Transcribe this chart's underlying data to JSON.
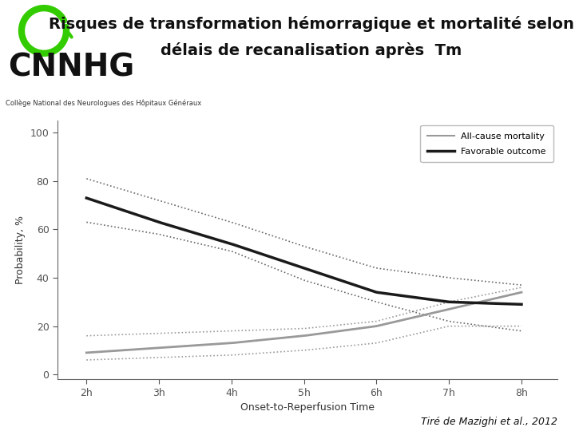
{
  "title_line1": "Risques de transformation hémorragique et mortalité selon",
  "title_line2": "délais de recanalisation après  Tm",
  "footer": "Tiré de Mazighi et al., 2012",
  "cnnhg_text": "CNNHG",
  "subtitle_text": "Collège National des Neurologues des Hôpitaux Généraux",
  "xlabel": "Onset-to-Reperfusion Time",
  "ylabel": "Probability, %",
  "x_ticks": [
    2,
    3,
    4,
    5,
    6,
    7,
    8
  ],
  "x_tick_labels": [
    "2h",
    "3h",
    "4h",
    "5h",
    "6h",
    "7h",
    "8h"
  ],
  "ylim": [
    -2,
    105
  ],
  "xlim": [
    1.6,
    8.5
  ],
  "legend_label_mortality": "All-cause mortality",
  "legend_label_favorable": "Favorable outcome",
  "mortality_x": [
    2,
    3,
    4,
    5,
    6,
    7,
    8
  ],
  "mortality_y": [
    9,
    11,
    13,
    16,
    20,
    27,
    34
  ],
  "mortality_upper": [
    16,
    17,
    18,
    19,
    22,
    30,
    36
  ],
  "mortality_lower": [
    6,
    7,
    8,
    10,
    13,
    20,
    20
  ],
  "favorable_x": [
    2,
    3,
    4,
    5,
    6,
    7,
    8
  ],
  "favorable_y": [
    73,
    63,
    54,
    44,
    34,
    30,
    29
  ],
  "favorable_upper": [
    81,
    72,
    63,
    53,
    44,
    40,
    37
  ],
  "favorable_lower": [
    63,
    58,
    51,
    39,
    30,
    22,
    18
  ],
  "mortality_color": "#999999",
  "favorable_color": "#1a1a1a",
  "ci_mortality_color": "#999999",
  "ci_favorable_color": "#666666",
  "header_bg": "#ffffff",
  "bar_color": "#c8d8a0",
  "background_color": "#ffffff",
  "plot_bg": "#ffffff",
  "green_circle_color": "#33cc00",
  "green_arrow_color": "#33cc00"
}
